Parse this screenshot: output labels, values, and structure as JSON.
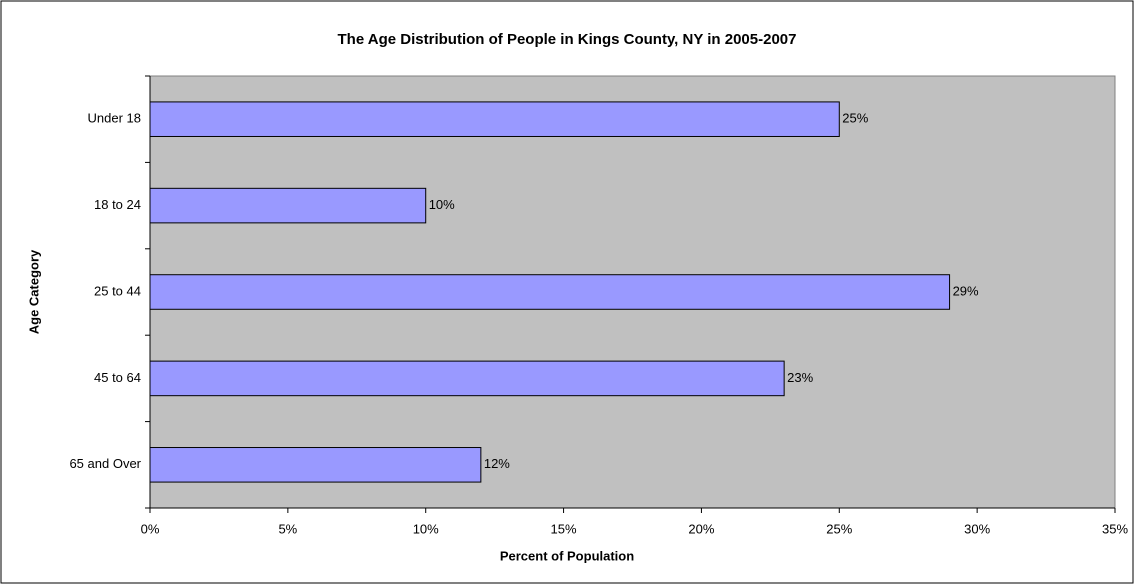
{
  "chart_data": {
    "type": "hbar",
    "title": "The Age Distribution of People in Kings County, NY in 2005-2007",
    "x_label": "Percent of Population",
    "y_label": "Age Category",
    "categories": [
      "Under 18",
      "18 to 24",
      "25 to 44",
      "45 to 64",
      "65 and Over"
    ],
    "values": [
      25,
      10,
      29,
      23,
      12
    ],
    "value_labels": [
      "25%",
      "10%",
      "29%",
      "23%",
      "12%"
    ],
    "color": "#9999ff",
    "xlim": [
      0,
      35
    ],
    "xticks": [
      {
        "value": 0,
        "label": "0%"
      },
      {
        "value": 5,
        "label": "5%"
      },
      {
        "value": 10,
        "label": "10%"
      },
      {
        "value": 15,
        "label": "15%"
      },
      {
        "value": 20,
        "label": "20%"
      },
      {
        "value": 25,
        "label": "25%"
      },
      {
        "value": 30,
        "label": "30%"
      },
      {
        "value": 35,
        "label": "35%"
      }
    ],
    "grid": false
  }
}
